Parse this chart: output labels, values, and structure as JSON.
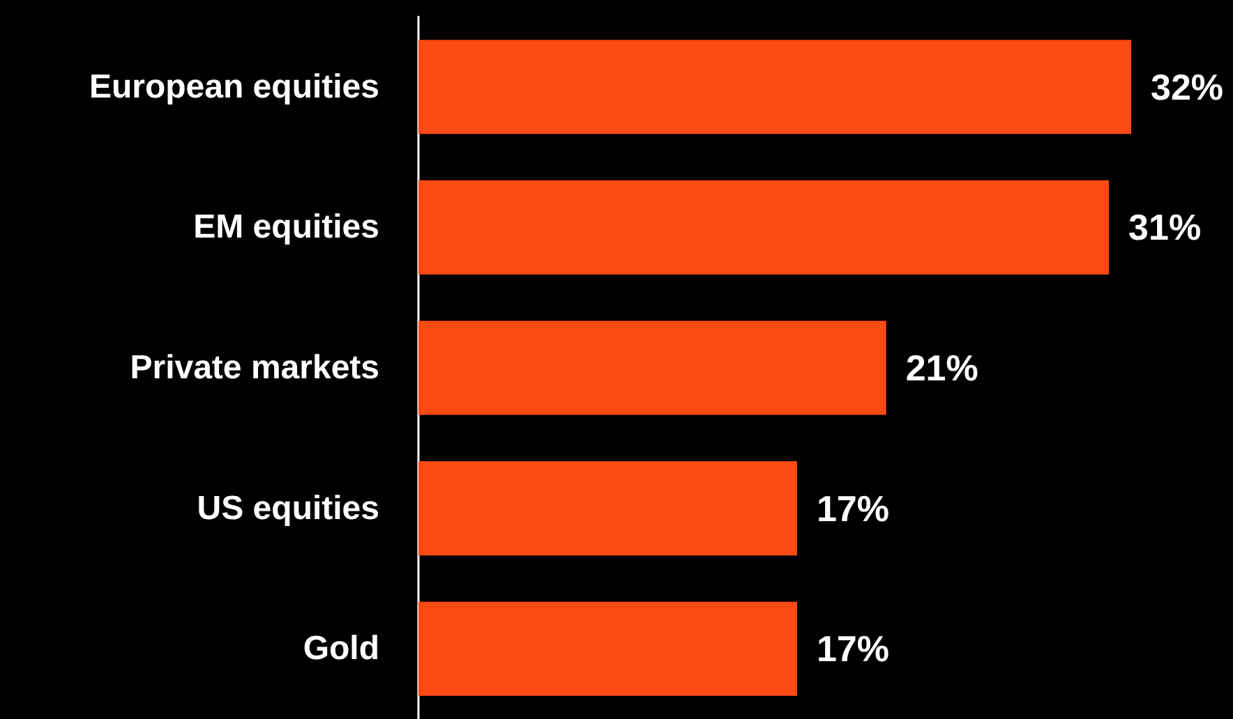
{
  "chart_data": {
    "type": "bar",
    "orientation": "horizontal",
    "categories": [
      "European equities",
      "EM equities",
      "Private markets",
      "US equities",
      "Gold"
    ],
    "values": [
      32,
      31,
      21,
      17,
      17
    ],
    "value_labels": [
      "32%",
      "31%",
      "21%",
      "17%",
      "17%"
    ],
    "color": "#fc4a14",
    "tick_labels": "y"
  }
}
